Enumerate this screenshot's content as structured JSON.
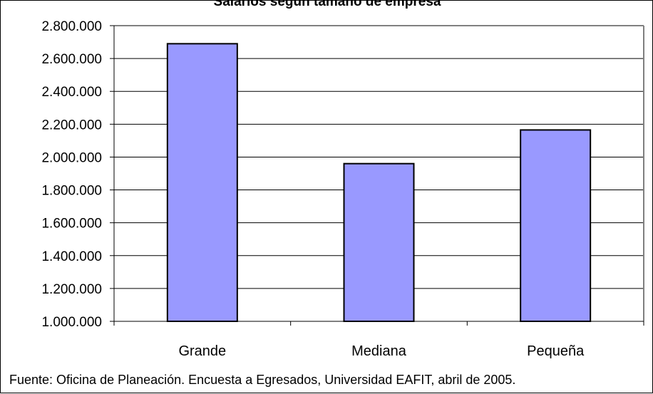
{
  "chart_data": {
    "type": "bar",
    "title": "Salarios según tamaño de empresa",
    "categories": [
      "Grande",
      "Mediana",
      "Pequeña"
    ],
    "values": [
      2690000,
      1960000,
      2165000
    ],
    "ylim": [
      1000000,
      2800000
    ],
    "yticks": [
      1000000,
      1200000,
      1400000,
      1600000,
      1800000,
      2000000,
      2200000,
      2400000,
      2600000,
      2800000
    ],
    "ytick_labels": [
      "1.000.000",
      "1.200.000",
      "1.400.000",
      "1.600.000",
      "1.800.000",
      "2.000.000",
      "2.200.000",
      "2.400.000",
      "2.600.000",
      "2.800.000"
    ],
    "grid": true,
    "bar_color": "#9999ff",
    "bar_edge_color": "#000000",
    "plot_border_color": "#808080"
  },
  "footer": {
    "source": "Fuente: Oficina de Planeación. Encuesta a Egresados, Universidad EAFIT, abril de 2005."
  }
}
